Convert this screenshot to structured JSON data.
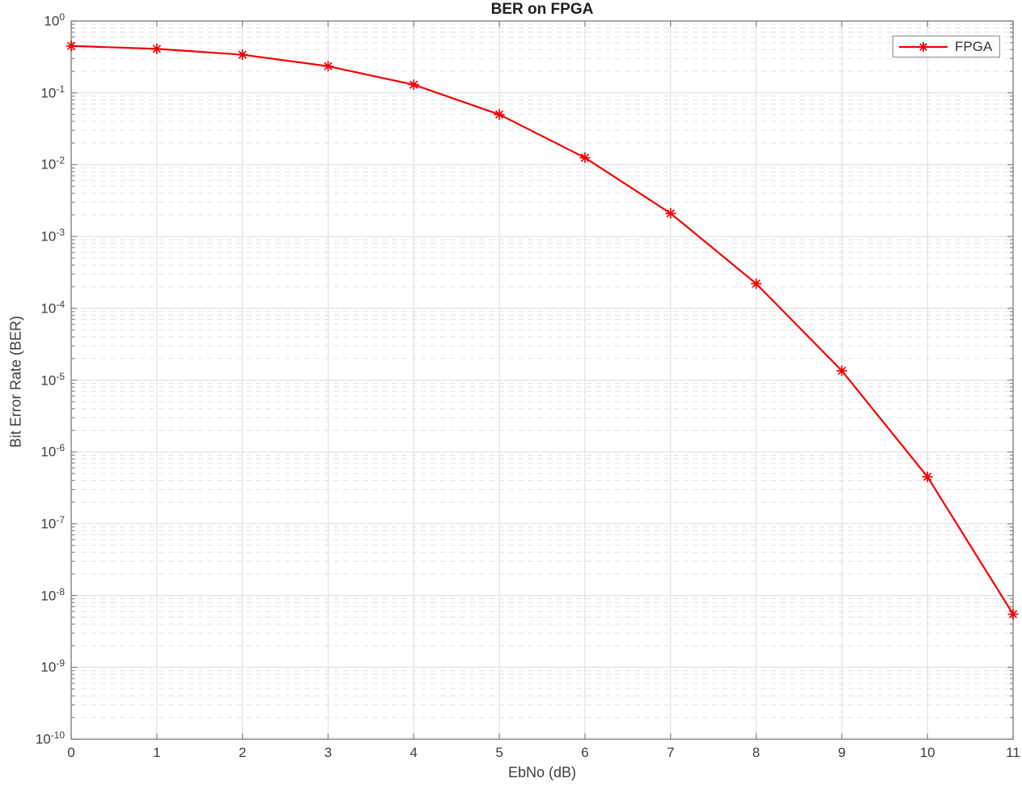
{
  "figure": {
    "title": "BER on FPGA",
    "xlabel": "EbNo (dB)",
    "ylabel": "Bit Error Rate (BER)"
  },
  "legend": {
    "position": "top-right",
    "items": [
      {
        "label": "FPGA",
        "color": "#f40000",
        "marker": "asterisk",
        "line": "solid"
      }
    ]
  },
  "colors": {
    "series_red": "#f40000",
    "axis_box": "#8a8a8a",
    "major_grid": "#dcdcdc",
    "minor_grid": "#e4e4e4",
    "tick_label": "#3d3d3d",
    "background": "#ffffff"
  },
  "chart_data": {
    "type": "line",
    "title": "BER on FPGA",
    "xlabel": "EbNo (dB)",
    "ylabel": "Bit Error Rate (BER)",
    "x_scale": "linear",
    "y_scale": "log",
    "xlim": [
      0,
      11
    ],
    "ylim": [
      1e-10,
      1
    ],
    "grid": "major and log-minor horizontal, major vertical",
    "legend_position": "top-right",
    "x_ticks": [
      0,
      1,
      2,
      3,
      4,
      5,
      6,
      7,
      8,
      9,
      10,
      11
    ],
    "y_tick_exponents": [
      0,
      -1,
      -2,
      -3,
      -4,
      -5,
      -6,
      -7,
      -8,
      -9,
      -10
    ],
    "series": [
      {
        "name": "FPGA",
        "color": "#f40000",
        "marker": "asterisk",
        "x": [
          0,
          1,
          2,
          3,
          4,
          5,
          6,
          7,
          8,
          9,
          10,
          11
        ],
        "y": [
          0.45,
          0.41,
          0.34,
          0.235,
          0.13,
          0.05,
          0.0125,
          0.0021,
          0.00022,
          1.35e-05,
          4.5e-07,
          5.5e-09
        ]
      }
    ]
  }
}
